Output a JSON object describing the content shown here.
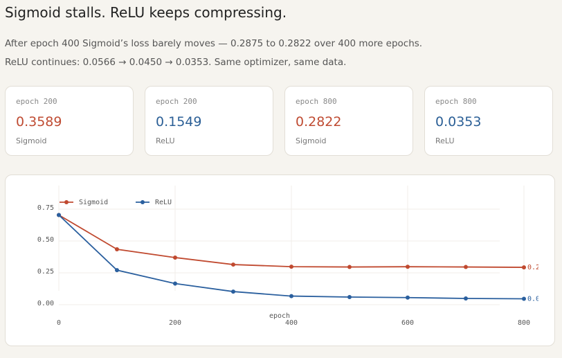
{
  "header": {
    "title": "Sigmoid stalls. ReLU keeps compressing.",
    "subtitle": "After epoch 400 Sigmoid’s loss barely moves — 0.2875 to 0.2822 over 400 more epochs. ReLU continues: 0.0566 → 0.0450 → 0.0353. Same optimizer, same data."
  },
  "cards": [
    {
      "label": "epoch 200",
      "value": "0.3589",
      "caption": "Sigmoid",
      "color": "#bf4b32"
    },
    {
      "label": "epoch 200",
      "value": "0.1549",
      "caption": "ReLU",
      "color": "#2b5f96"
    },
    {
      "label": "epoch 800",
      "value": "0.2822",
      "caption": "Sigmoid",
      "color": "#bf4b32"
    },
    {
      "label": "epoch 800",
      "value": "0.0353",
      "caption": "ReLU",
      "color": "#2b5f96"
    }
  ],
  "chart_data": {
    "type": "line",
    "x_label": "epoch",
    "x": [
      0,
      100,
      200,
      300,
      400,
      500,
      600,
      700,
      800
    ],
    "series": [
      {
        "name": "Sigmoid",
        "color": "#c0492f",
        "values": [
          0.693,
          0.424,
          0.3589,
          0.304,
          0.2875,
          0.285,
          0.287,
          0.285,
          0.2822
        ]
      },
      {
        "name": "ReLU",
        "color": "#2a5f9e",
        "values": [
          0.693,
          0.26,
          0.1549,
          0.092,
          0.0566,
          0.049,
          0.045,
          0.038,
          0.0353
        ]
      }
    ],
    "xlim": [
      0,
      800
    ],
    "xticks": [
      0,
      200,
      400,
      600,
      800
    ],
    "ylim": [
      0,
      0.75
    ],
    "yticks": [
      {
        "value": 0,
        "label": "0.00"
      },
      0.25,
      {
        "value": 0.5,
        "label": "0.50"
      },
      0.75
    ],
    "grid": true,
    "legend": "top-left"
  }
}
